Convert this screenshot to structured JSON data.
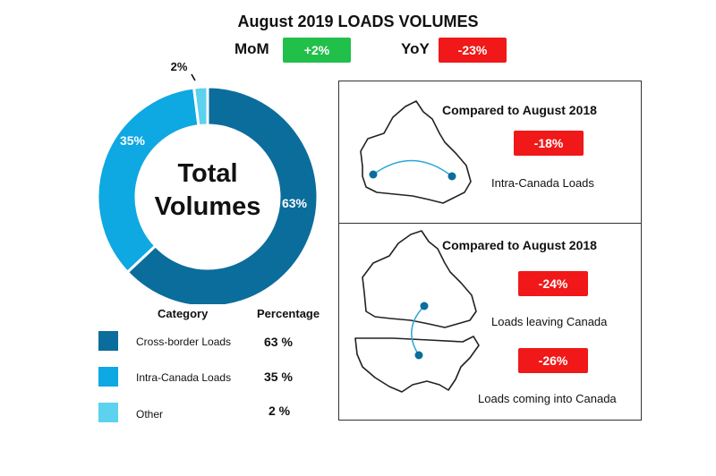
{
  "header": {
    "title": "August 2019 LOADS VOLUMES",
    "mom_label": "MoM",
    "mom_value": "+2%",
    "yoy_label": "YoY",
    "yoy_value": "-23%"
  },
  "chart_data": {
    "type": "pie",
    "center_label": [
      "Total",
      "Volumes"
    ],
    "slices": [
      {
        "label": "Cross-border Loads",
        "value": 63,
        "display": "63%",
        "color": "#0b6d9b"
      },
      {
        "label": "Intra-Canada Loads",
        "value": 35,
        "display": "35%",
        "color": "#0ea8e2"
      },
      {
        "label": "Other",
        "value": 2,
        "display": "2%",
        "color": "#5cd2ee"
      }
    ]
  },
  "legend": {
    "category_header": "Category",
    "percentage_header": "Percentage",
    "rows": [
      {
        "label": "Cross-border Loads",
        "pct": "63 %"
      },
      {
        "label": "Intra-Canada Loads",
        "pct": "35 %"
      },
      {
        "label": "Other",
        "pct": "2 %"
      }
    ]
  },
  "panels": {
    "top": {
      "heading": "Compared to August 2018",
      "badge": "-18%",
      "caption": "Intra-Canada Loads"
    },
    "bottom": {
      "heading": "Compared to August 2018",
      "badge1": "-24%",
      "caption1": "Loads leaving Canada",
      "badge2": "-26%",
      "caption2": "Loads coming into Canada"
    }
  },
  "colors": {
    "positive": "#21c04a",
    "negative": "#f01818",
    "route": "#2aa6d8",
    "dot": "#0b6d9b"
  }
}
